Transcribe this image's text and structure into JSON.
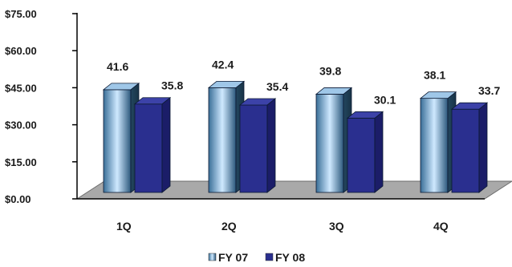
{
  "chart_data": {
    "type": "bar",
    "categories": [
      "1Q",
      "2Q",
      "3Q",
      "4Q"
    ],
    "series": [
      {
        "name": "FY 07",
        "values": [
          41.6,
          42.4,
          39.8,
          38.1
        ],
        "labels": [
          "41.6",
          "42.4",
          "39.8",
          "38.1"
        ]
      },
      {
        "name": "FY 08",
        "values": [
          35.8,
          35.4,
          30.1,
          33.7
        ],
        "labels": [
          "35.8",
          "35.4",
          "30.1",
          "33.7"
        ]
      }
    ],
    "y_ticks": [
      "$0.00",
      "$15.00",
      "$30.00",
      "$45.00",
      "$60.00",
      "$75.00"
    ],
    "ylim": [
      0,
      75
    ],
    "legend_position": "bottom",
    "grid": false,
    "three_d": true,
    "colors": {
      "fy07_light": "#bfe0ff",
      "fy07_dark": "#2f5f86",
      "fy08_front": "#2a2f8f",
      "fy08_side": "#1b1d68",
      "floor": "#a9a9a9"
    }
  }
}
